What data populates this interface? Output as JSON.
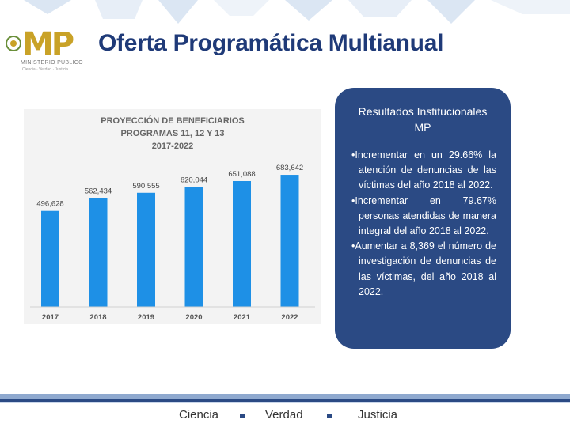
{
  "slide": {
    "title": "Oferta Programática Multianual",
    "logo": {
      "mark": "MP",
      "name": "MINISTERIO PUBLICO",
      "tagline": "Ciencia · Verdad · Justicia"
    }
  },
  "chart_data": {
    "type": "bar",
    "title_lines": [
      "PROYECCIÓN DE BENEFICIARIOS",
      "PROGRAMAS 11, 12 Y 13",
      "2017-2022"
    ],
    "categories": [
      "2017",
      "2018",
      "2019",
      "2020",
      "2021",
      "2022"
    ],
    "values": [
      496628,
      562434,
      590555,
      620044,
      651088,
      683642
    ],
    "data_labels": [
      "496,628",
      "562,434",
      "590,555",
      "620,044",
      "651,088",
      "683,642"
    ],
    "ylim": [
      0,
      950000
    ],
    "xlabel": "",
    "ylabel": "",
    "grid": false,
    "color": "#1e90e6"
  },
  "panel": {
    "heading": "Resultados Institucionales MP",
    "items": [
      "Incrementar en un 29.66% la atención de denuncias de las víctimas del año 2018 al 2022.",
      "Incrementar en 79.67% personas atendidas de manera integral del año 2018 al 2022.",
      "Aumentar a 8,369 el número de investigación de denuncias de las víctimas, del año 2018 al 2022."
    ]
  },
  "footer": {
    "items": [
      "Ciencia",
      "Verdad",
      "Justicia"
    ]
  }
}
